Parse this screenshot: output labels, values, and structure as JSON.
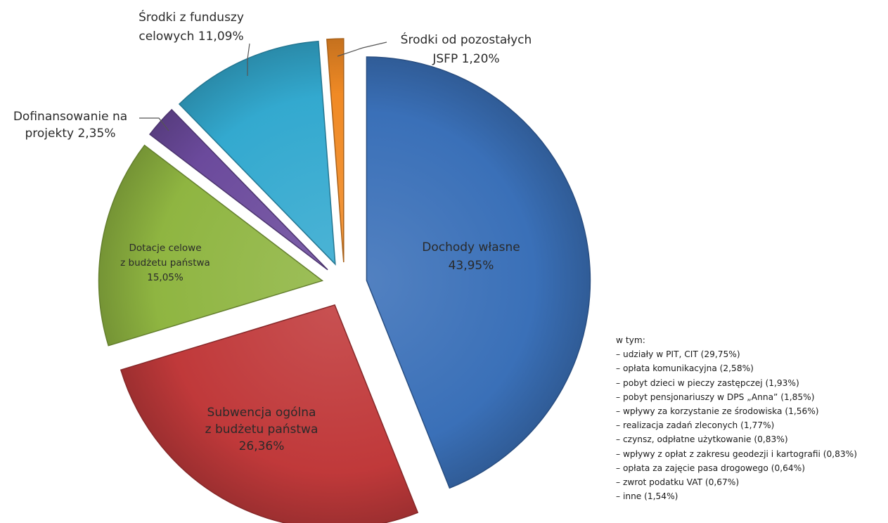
{
  "chart_data": {
    "type": "pie",
    "exploded": true,
    "slices": [
      {
        "name": "Dochody własne",
        "value": 43.95,
        "label_lines": [
          "Dochody własne",
          "43,95%"
        ],
        "color": "#3a70b8"
      },
      {
        "name": "Subwencja ogólna z budżetu państwa",
        "value": 26.36,
        "label_lines": [
          "Subwencja ogólna",
          "z budżetu państwa",
          "26,36%"
        ],
        "color": "#c0393a"
      },
      {
        "name": "Dotacje celowe z budżetu państwa",
        "value": 15.05,
        "label_lines": [
          "Dotacje celowe",
          "z budżetu państwa",
          "15,05%"
        ],
        "color": "#8fb541"
      },
      {
        "name": "Dofinansowanie na projekty",
        "value": 2.35,
        "label_lines": [
          "Dofinansowanie na",
          "projekty 2,35%"
        ],
        "color": "#6b4a9c"
      },
      {
        "name": "Środki z funduszy celowych",
        "value": 11.09,
        "label_lines": [
          "Środki z funduszy",
          "celowych 11,09%"
        ],
        "color": "#33a9cf"
      },
      {
        "name": "Środki od pozostałych JSFP",
        "value": 1.2,
        "label_lines": [
          "Środki od pozostałych",
          "JSFP 1,20%"
        ],
        "color": "#f08a25"
      }
    ],
    "breakdown": {
      "title": "w tym:",
      "items": [
        "– udziały w PIT, CIT (29,75%)",
        "– opłata komunikacyjna (2,58%)",
        "– pobyt dzieci w pieczy zastępczej (1,93%)",
        "– pobyt pensjonariuszy w DPS „Anna” (1,85%)",
        "– wpływy za korzystanie ze środowiska (1,56%)",
        "– realizacja zadań zleconych (1,77%)",
        "– czynsz, odpłatne użytkowanie (0,83%)",
        "– wpływy z opłat z zakresu geodezji i kartografii (0,83%)",
        "– opłata za zajęcie pasa drogowego (0,64%)",
        "– zwrot podatku VAT (0,67%)",
        "– inne (1,54%)"
      ]
    }
  }
}
